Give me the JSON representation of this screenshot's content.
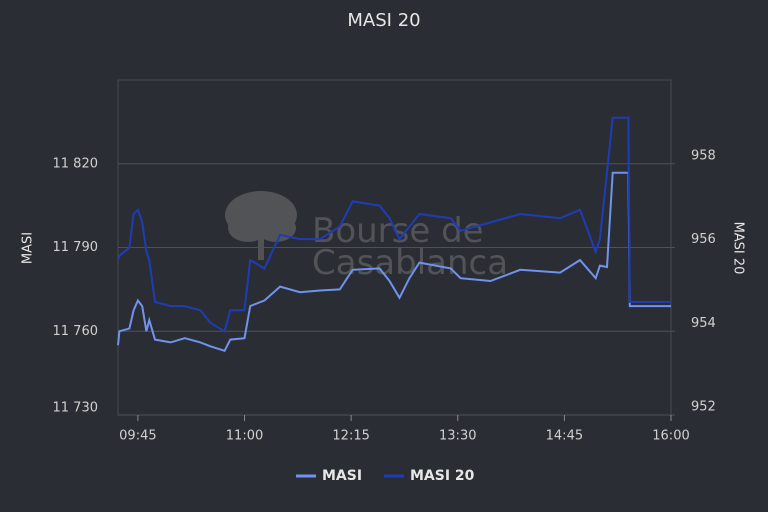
{
  "chart_data": {
    "type": "line",
    "title": "MASI 20",
    "watermark": "Bourse de Casablanca",
    "y_label": "MASI",
    "y2_label": "MASI 20",
    "x": [
      "09:31",
      "09:32",
      "09:39",
      "09:42",
      "09:45",
      "09:48",
      "09:51",
      "09:53",
      "09:57",
      "10:08",
      "10:18",
      "10:29",
      "10:36",
      "10:46",
      "10:50",
      "11:00",
      "11:04",
      "11:14",
      "11:25",
      "11:39",
      "11:53",
      "12:07",
      "12:16",
      "12:35",
      "12:42",
      "12:49",
      "12:56",
      "13:03",
      "13:25",
      "13:32",
      "13:53",
      "14:14",
      "14:42",
      "14:56",
      "15:07",
      "15:10",
      "15:15",
      "15:19",
      "15:30",
      "15:31",
      "16:00"
    ],
    "xlim": [
      "09:31",
      "16:00"
    ],
    "xticks": [
      "09:45",
      "11:00",
      "12:15",
      "13:30",
      "14:45",
      "16:00"
    ],
    "ylim": [
      11730,
      11850
    ],
    "yticks": [
      {
        "value": 11730,
        "label": "11 730"
      },
      {
        "value": 11760,
        "label": "11 760"
      },
      {
        "value": 11790,
        "label": "11 790"
      },
      {
        "value": 11820,
        "label": "11 820"
      }
    ],
    "y2lim": [
      952,
      960
    ],
    "y2ticks": [
      952,
      954,
      956,
      958
    ],
    "grid": true,
    "legend": "bottom",
    "series": [
      {
        "name": "MASI",
        "color": "#6f93ee",
        "axis": "y",
        "values": [
          11755,
          11760,
          11761,
          11767.5,
          11771,
          11769,
          11760,
          11764,
          11757,
          11756,
          11757.5,
          11756,
          11754.6,
          11753,
          11757,
          11757.5,
          11769,
          11771,
          11776,
          11774,
          11774.6,
          11775,
          11782,
          11782.5,
          11778,
          11772,
          11779,
          11784.6,
          11782.5,
          11779,
          11778,
          11782,
          11781,
          11785.5,
          11779,
          11783.5,
          11783,
          11816.8,
          11816.8,
          11769,
          11769
        ]
      },
      {
        "name": "MASI 20",
        "color": "#1e3db5",
        "axis": "y2",
        "values": [
          955.7,
          955.8,
          956.0,
          956.8,
          956.9,
          956.6,
          955.9,
          955.7,
          954.7,
          954.6,
          954.6,
          954.5,
          954.2,
          954.0,
          954.5,
          954.5,
          955.7,
          955.5,
          956.3,
          956.2,
          956.2,
          956.5,
          957.1,
          957.0,
          956.7,
          956.2,
          956.5,
          956.8,
          956.7,
          956.4,
          956.6,
          956.8,
          956.7,
          956.9,
          955.9,
          956.2,
          957.8,
          959.1,
          959.1,
          954.7,
          954.7
        ]
      }
    ]
  }
}
